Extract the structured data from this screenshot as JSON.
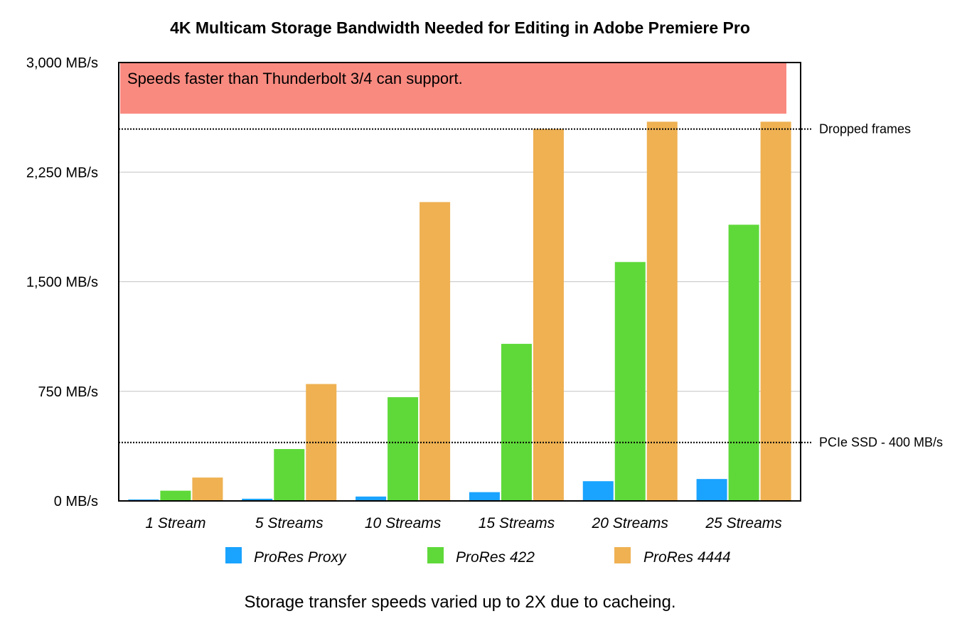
{
  "chart_data": {
    "type": "bar",
    "title": "4K Multicam Storage Bandwidth Needed for Editing in Adobe Premiere Pro",
    "xlabel": "",
    "ylabel": "",
    "ylim": [
      0,
      3000
    ],
    "yticks": [
      0,
      750,
      1500,
      2250,
      3000
    ],
    "ytick_labels": [
      "0 MB/s",
      "750 MB/s",
      "1,500 MB/s",
      "2,250 MB/s",
      "3,000 MB/s"
    ],
    "grid": true,
    "legend_position": "bottom",
    "categories": [
      "1 Stream",
      "5 Streams",
      "10 Streams",
      "15 Streams",
      "20 Streams",
      "25 Streams"
    ],
    "series": [
      {
        "name": "ProRes Proxy",
        "color": "#1aa3ff",
        "values": [
          10,
          15,
          30,
          60,
          135,
          150
        ]
      },
      {
        "name": "ProRes 422",
        "color": "#5fd93a",
        "values": [
          70,
          355,
          710,
          1075,
          1635,
          1890
        ]
      },
      {
        "name": "ProRes 4444",
        "color": "#efb152",
        "values": [
          160,
          800,
          2045,
          2545,
          2595,
          2595
        ]
      }
    ],
    "band": {
      "from": 2650,
      "to": 3000,
      "color": "#f98a80",
      "label": "Speeds faster than Thunderbolt 3/4 can support."
    },
    "reference_lines": [
      {
        "value": 2545,
        "label": "Dropped frames"
      },
      {
        "value": 400,
        "label": "PCIe SSD - 400 MB/s"
      }
    ],
    "footnote": "Storage transfer speeds varied up to 2X due to cacheing."
  }
}
